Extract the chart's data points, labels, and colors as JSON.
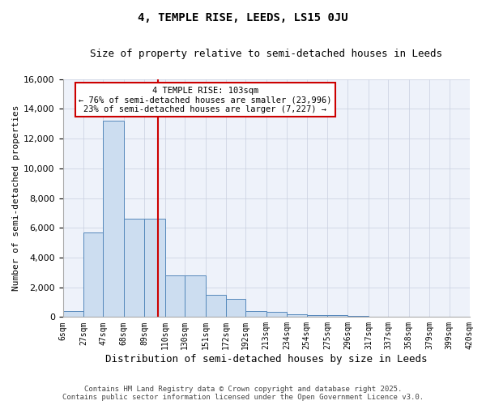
{
  "title": "4, TEMPLE RISE, LEEDS, LS15 0JU",
  "subtitle": "Size of property relative to semi-detached houses in Leeds",
  "xlabel": "Distribution of semi-detached houses by size in Leeds",
  "ylabel": "Number of semi-detached properties",
  "bin_edges": [
    6,
    27,
    47,
    68,
    89,
    110,
    130,
    151,
    172,
    192,
    213,
    234,
    254,
    275,
    296,
    317,
    337,
    358,
    379,
    399,
    420
  ],
  "bar_heights": [
    400,
    5700,
    13200,
    6600,
    6600,
    2800,
    2800,
    1500,
    1200,
    400,
    350,
    200,
    100,
    100,
    50,
    30,
    20,
    10,
    5,
    5
  ],
  "bar_color": "#ccddf0",
  "bar_edge_color": "#5588bb",
  "red_line_x": 103,
  "annotation_title": "4 TEMPLE RISE: 103sqm",
  "annotation_line1": "← 76% of semi-detached houses are smaller (23,996)",
  "annotation_line2": "23% of semi-detached houses are larger (7,227) →",
  "annotation_box_color": "#cc0000",
  "ylim": [
    0,
    16000
  ],
  "yticks": [
    0,
    2000,
    4000,
    6000,
    8000,
    10000,
    12000,
    14000,
    16000
  ],
  "tick_labels": [
    "6sqm",
    "27sqm",
    "47sqm",
    "68sqm",
    "89sqm",
    "110sqm",
    "130sqm",
    "151sqm",
    "172sqm",
    "192sqm",
    "213sqm",
    "234sqm",
    "254sqm",
    "275sqm",
    "296sqm",
    "317sqm",
    "337sqm",
    "358sqm",
    "379sqm",
    "399sqm",
    "420sqm"
  ],
  "footer1": "Contains HM Land Registry data © Crown copyright and database right 2025.",
  "footer2": "Contains public sector information licensed under the Open Government Licence v3.0.",
  "bg_color": "#eef2fa",
  "grid_color": "#c8cfe0",
  "fig_width": 6.0,
  "fig_height": 5.0,
  "dpi": 100
}
